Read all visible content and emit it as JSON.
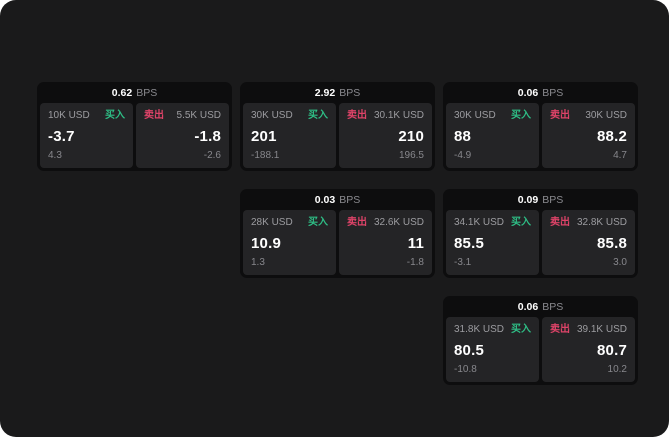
{
  "labels": {
    "bps": "BPS",
    "buy": "买入",
    "sell": "卖出"
  },
  "colors": {
    "background": "#1a1a1b",
    "card": "#0d0d0e",
    "panel": "#242426",
    "buy_green": "#2EBD85",
    "sell_red": "#DE4368"
  },
  "cards": [
    {
      "bps": "0.62",
      "buy": {
        "notional": "10K USD",
        "price": "-3.7",
        "sub": "4.3"
      },
      "sell": {
        "notional": "5.5K USD",
        "price": "-1.8",
        "sub": "-2.6"
      }
    },
    {
      "bps": "2.92",
      "buy": {
        "notional": "30K USD",
        "price": "201",
        "sub": "-188.1"
      },
      "sell": {
        "notional": "30.1K USD",
        "price": "210",
        "sub": "196.5"
      }
    },
    {
      "bps": "0.06",
      "buy": {
        "notional": "30K USD",
        "price": "88",
        "sub": "-4.9"
      },
      "sell": {
        "notional": "30K USD",
        "price": "88.2",
        "sub": "4.7"
      }
    },
    {
      "bps": "0.03",
      "buy": {
        "notional": "28K USD",
        "price": "10.9",
        "sub": "1.3"
      },
      "sell": {
        "notional": "32.6K USD",
        "price": "11",
        "sub": "-1.8"
      }
    },
    {
      "bps": "0.09",
      "buy": {
        "notional": "34.1K USD",
        "price": "85.5",
        "sub": "-3.1"
      },
      "sell": {
        "notional": "32.8K USD",
        "price": "85.8",
        "sub": "3.0"
      }
    },
    {
      "bps": "0.06",
      "buy": {
        "notional": "31.8K USD",
        "price": "80.5",
        "sub": "-10.8"
      },
      "sell": {
        "notional": "39.1K USD",
        "price": "80.7",
        "sub": "10.2"
      }
    }
  ]
}
